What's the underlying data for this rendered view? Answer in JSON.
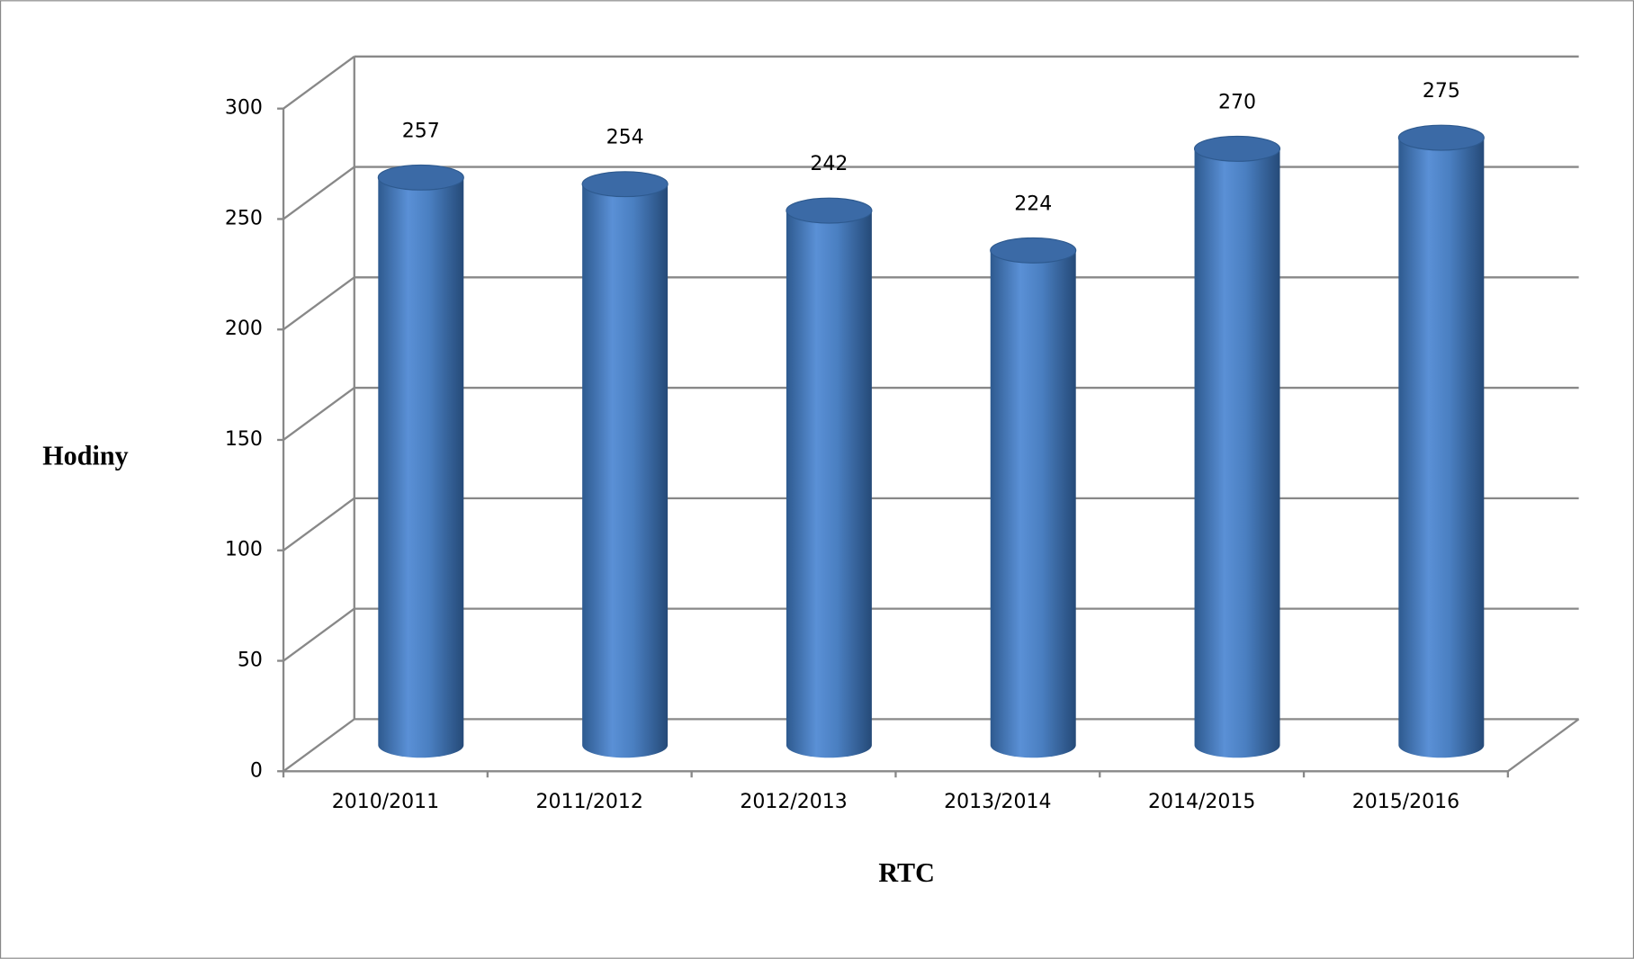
{
  "chart_data": {
    "type": "bar",
    "style": "3d-cylinder",
    "x_label": "RTC",
    "y_label": "Hodiny",
    "categories": [
      "2010/2011",
      "2011/2012",
      "2012/2013",
      "2013/2014",
      "2014/2015",
      "2015/2016"
    ],
    "values": [
      257,
      254,
      242,
      224,
      270,
      275
    ],
    "color": "#4a7fc1",
    "ylim": [
      0,
      300
    ],
    "yticks": [
      0,
      50,
      100,
      150,
      200,
      250,
      300
    ],
    "grid": true
  }
}
